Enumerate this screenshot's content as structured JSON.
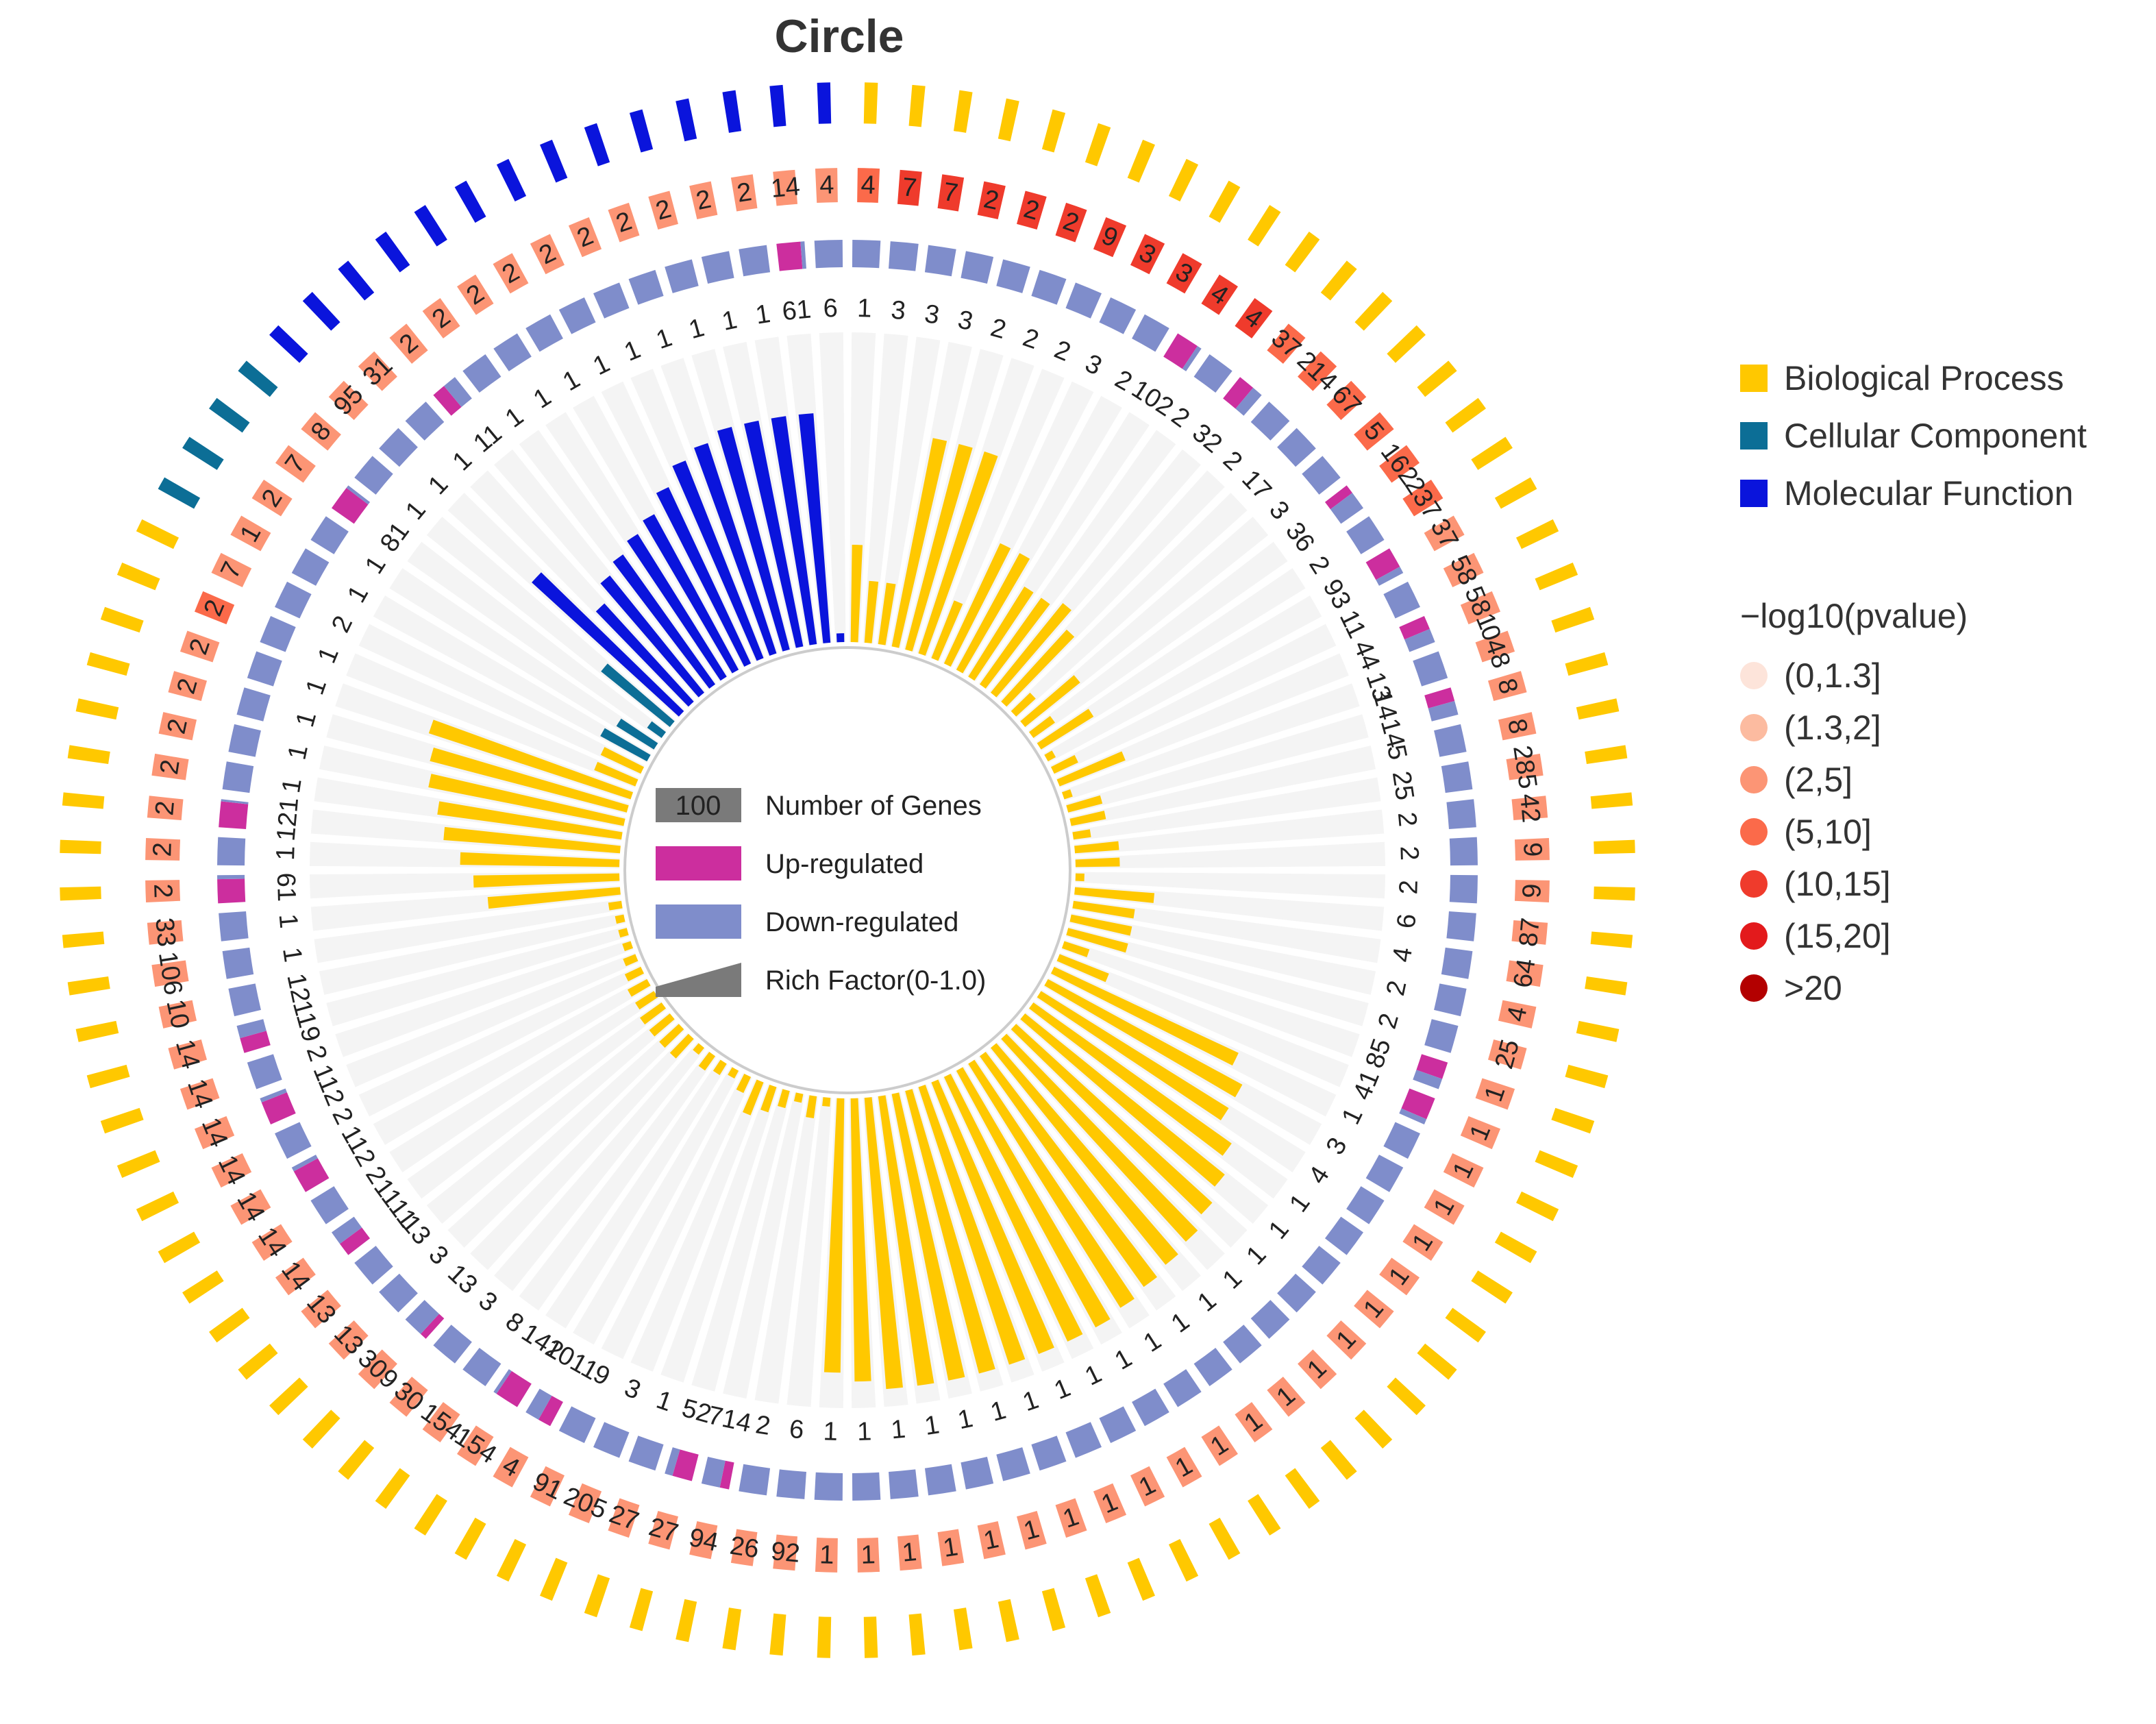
{
  "chart_data": {
    "type": "circular-enrichment",
    "title": "Circle",
    "center_legend": {
      "genes_number": "100",
      "genes_label": "Number of Genes",
      "up_label": "Up-regulated",
      "down_label": "Down-regulated",
      "rich_label": "Rich Factor(0-1.0)"
    },
    "ontology_legend": [
      {
        "name": "Biological Process",
        "color": "#FFC800"
      },
      {
        "name": "Cellular Component",
        "color": "#0C6E96"
      },
      {
        "name": "Molecular Function",
        "color": "#0A14DC"
      }
    ],
    "pvalue_legend": {
      "title": "−log10(pvalue)",
      "levels": [
        {
          "label": "(0,1.3]",
          "color": "#FDE4DA"
        },
        {
          "label": "(1.3,2]",
          "color": "#FCBBA0"
        },
        {
          "label": "(2,5]",
          "color": "#FC9575"
        },
        {
          "label": "(5,10]",
          "color": "#FB6A4A"
        },
        {
          "label": "(10,15]",
          "color": "#EF3B2C"
        },
        {
          "label": "(15,20]",
          "color": "#E31A1C"
        },
        {
          "label": ">20",
          "color": "#B30000"
        }
      ]
    },
    "num_terms": 104,
    "colors": {
      "up": "#CC2E9E",
      "down": "#7F8DCB",
      "track": "#F4F4F4",
      "text": "#222222"
    },
    "total_genes": [
      "4",
      "7",
      "7",
      "2",
      "2",
      "2",
      "9",
      "3",
      "3",
      "4",
      "4",
      "37",
      "214",
      "67",
      "5",
      "162",
      "237",
      "37",
      "58",
      "581",
      "048",
      "8",
      "8",
      "285",
      "42",
      "9",
      "9",
      "87",
      "64",
      "4",
      "25",
      "1",
      "1",
      "1",
      "1",
      "1",
      "1",
      "1",
      "1",
      "1",
      "1",
      "1",
      "1",
      "1",
      "1",
      "1",
      "1",
      "1",
      "1",
      "1",
      "1",
      "1",
      "1",
      "92",
      "26",
      "94",
      "27",
      "27",
      "205",
      "91",
      "4",
      "154",
      "154",
      "30",
      "309",
      "13",
      "13",
      "14",
      "14",
      "14",
      "14",
      "14",
      "14",
      "14",
      "10",
      "106",
      "33",
      "2",
      "2",
      "2",
      "2",
      "2",
      "2",
      "2",
      "2",
      "7",
      "1",
      "2",
      "7",
      "8",
      "95",
      "31",
      "2",
      "2",
      "2",
      "2",
      "2",
      "2",
      "2",
      "2",
      "2",
      "2",
      "14",
      "4"
    ],
    "total_pval_level": [
      3,
      4,
      4,
      4,
      4,
      4,
      4,
      4,
      4,
      4,
      4,
      3,
      3,
      3,
      3,
      3,
      3,
      2,
      2,
      2,
      2,
      2,
      2,
      2,
      2,
      2,
      2,
      2,
      2,
      2,
      2,
      2,
      2,
      2,
      2,
      2,
      2,
      2,
      2,
      2,
      2,
      2,
      2,
      2,
      2,
      2,
      2,
      2,
      2,
      2,
      2,
      2,
      2,
      2,
      2,
      2,
      2,
      2,
      2,
      2,
      2,
      2,
      2,
      2,
      2,
      2,
      2,
      2,
      2,
      2,
      2,
      2,
      2,
      2,
      2,
      2,
      2,
      2,
      2,
      2,
      2,
      2,
      2,
      2,
      3,
      2,
      2,
      2,
      2,
      2,
      2,
      2,
      2,
      2,
      2,
      2,
      2,
      2,
      2,
      2,
      2,
      2,
      2,
      2
    ],
    "up": [
      0,
      0,
      0,
      0,
      0,
      0,
      0,
      0,
      0,
      10,
      0,
      3,
      0,
      0,
      0,
      3,
      0,
      9,
      0,
      4,
      0,
      14,
      0,
      0,
      0,
      0,
      0,
      0,
      0,
      0,
      0,
      8,
      4,
      0,
      0,
      0,
      0,
      0,
      0,
      0,
      0,
      0,
      0,
      0,
      0,
      0,
      0,
      0,
      0,
      0,
      0,
      0,
      0,
      0,
      0,
      7,
      5,
      0,
      0,
      0,
      10,
      14,
      0,
      0,
      1,
      0,
      0,
      11,
      0,
      11,
      0,
      11,
      0,
      11,
      0,
      0,
      0,
      6,
      0,
      12,
      0,
      0,
      0,
      0,
      0,
      0,
      0,
      0,
      8,
      0,
      0,
      0,
      1,
      0,
      0,
      0,
      0,
      0,
      0,
      0,
      0,
      0,
      6,
      0
    ],
    "down": [
      1,
      3,
      3,
      3,
      2,
      2,
      2,
      3,
      2,
      2,
      2,
      2,
      2,
      17,
      3,
      6,
      2,
      3,
      11,
      4,
      13,
      14,
      5,
      25,
      2,
      2,
      2,
      6,
      4,
      2,
      2,
      5,
      1,
      1,
      3,
      4,
      1,
      1,
      1,
      1,
      1,
      1,
      1,
      1,
      1,
      1,
      1,
      1,
      1,
      1,
      1,
      1,
      1,
      6,
      2,
      14,
      2,
      1,
      3,
      9,
      11,
      2,
      8,
      3,
      3,
      3,
      13,
      11,
      2,
      2,
      2,
      2,
      2,
      9,
      12,
      1,
      1,
      1,
      1,
      1,
      1,
      1,
      1,
      1,
      1,
      2,
      1,
      1,
      1,
      1,
      1,
      1,
      1,
      1,
      1,
      1,
      1,
      1,
      1,
      1,
      1,
      1,
      1,
      6
    ],
    "rich": [
      0.22,
      0.14,
      0.14,
      0.48,
      0.48,
      0.48,
      0.14,
      0.3,
      0.3,
      0.24,
      0.24,
      0.26,
      0.22,
      0.06,
      0.16,
      0.06,
      0.14,
      0.02,
      0.06,
      0.16,
      0.02,
      0.08,
      0.08,
      0.04,
      0.1,
      0.1,
      0.02,
      0.18,
      0.14,
      0.14,
      0.14,
      0.06,
      0.12,
      0.46,
      0.5,
      0.5,
      0.55,
      0.58,
      0.6,
      0.62,
      0.63,
      0.64,
      0.65,
      0.66,
      0.66,
      0.66,
      0.66,
      0.66,
      0.66,
      0.66,
      0.66,
      0.64,
      0.62,
      0.02,
      0.05,
      0.02,
      0.04,
      0.06,
      0.08,
      0.04,
      0.02,
      0.03,
      0.04,
      0.02,
      0.06,
      0.06,
      0.06,
      0.06,
      0.05,
      0.05,
      0.04,
      0.03,
      0.02,
      0.02,
      0.02,
      0.03,
      0.3,
      0.33,
      0.36,
      0.4,
      0.42,
      0.45,
      0.46,
      0.48,
      0.1,
      0.1,
      0.12,
      0.1,
      0.04,
      0.2,
      0.45,
      0.3,
      0.34,
      0.36,
      0.38,
      0.4,
      0.44,
      0.48,
      0.5,
      0.52,
      0.52,
      0.52,
      0.52,
      0.02
    ]
  }
}
